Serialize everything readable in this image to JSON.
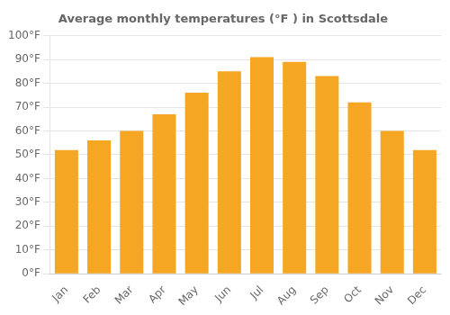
{
  "chart_data": {
    "type": "bar",
    "title": "Average monthly temperatures (°F ) in Scottsdale",
    "categories": [
      "Jan",
      "Feb",
      "Mar",
      "Apr",
      "May",
      "Jun",
      "Jul",
      "Aug",
      "Sep",
      "Oct",
      "Nov",
      "Dec"
    ],
    "values": [
      52,
      56,
      60,
      67,
      76,
      85,
      91,
      89,
      83,
      72,
      60,
      52
    ],
    "color": "#F5A623",
    "ylim": [
      0,
      100
    ],
    "yticks": [
      {
        "value": 0,
        "label": "0°F"
      },
      {
        "value": 10,
        "label": "10°F"
      },
      {
        "value": 20,
        "label": "20°F"
      },
      {
        "value": 30,
        "label": "30°F"
      },
      {
        "value": 40,
        "label": "40°F"
      },
      {
        "value": 50,
        "label": "50°F"
      },
      {
        "value": 60,
        "label": "60°F"
      },
      {
        "value": 70,
        "label": "70°F"
      },
      {
        "value": 80,
        "label": "80°F"
      },
      {
        "value": 90,
        "label": "90°F"
      },
      {
        "value": 100,
        "label": "100°F"
      }
    ],
    "grid": true
  }
}
